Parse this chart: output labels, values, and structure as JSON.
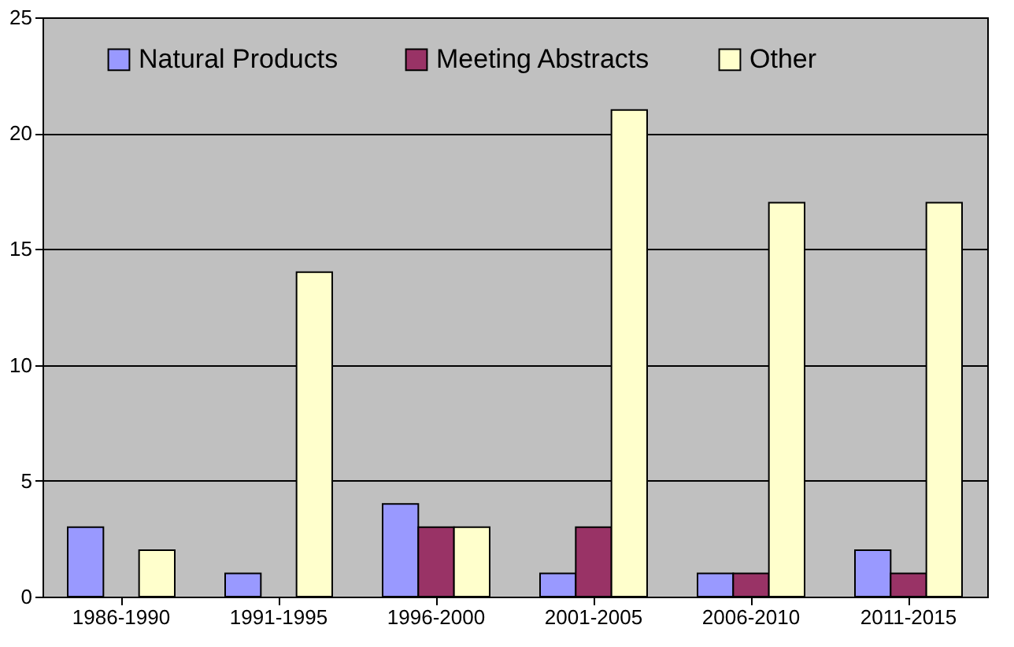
{
  "chart_data": {
    "type": "bar",
    "categories": [
      "1986-1990",
      "1991-1995",
      "1996-2000",
      "2001-2005",
      "2006-2010",
      "2011-2015"
    ],
    "series": [
      {
        "name": "Natural Products",
        "color": "#9999ff",
        "values": [
          3,
          1,
          4,
          1,
          1,
          2
        ]
      },
      {
        "name": "Meeting Abstracts",
        "color": "#993366",
        "values": [
          0,
          0,
          3,
          3,
          1,
          1
        ]
      },
      {
        "name": "Other",
        "color": "#ffffcc",
        "values": [
          2,
          14,
          3,
          21,
          17,
          17
        ]
      }
    ],
    "ylim": [
      0,
      25
    ],
    "yticks": [
      0,
      5,
      10,
      15,
      20,
      25
    ],
    "grid": "y",
    "legend": "top"
  }
}
